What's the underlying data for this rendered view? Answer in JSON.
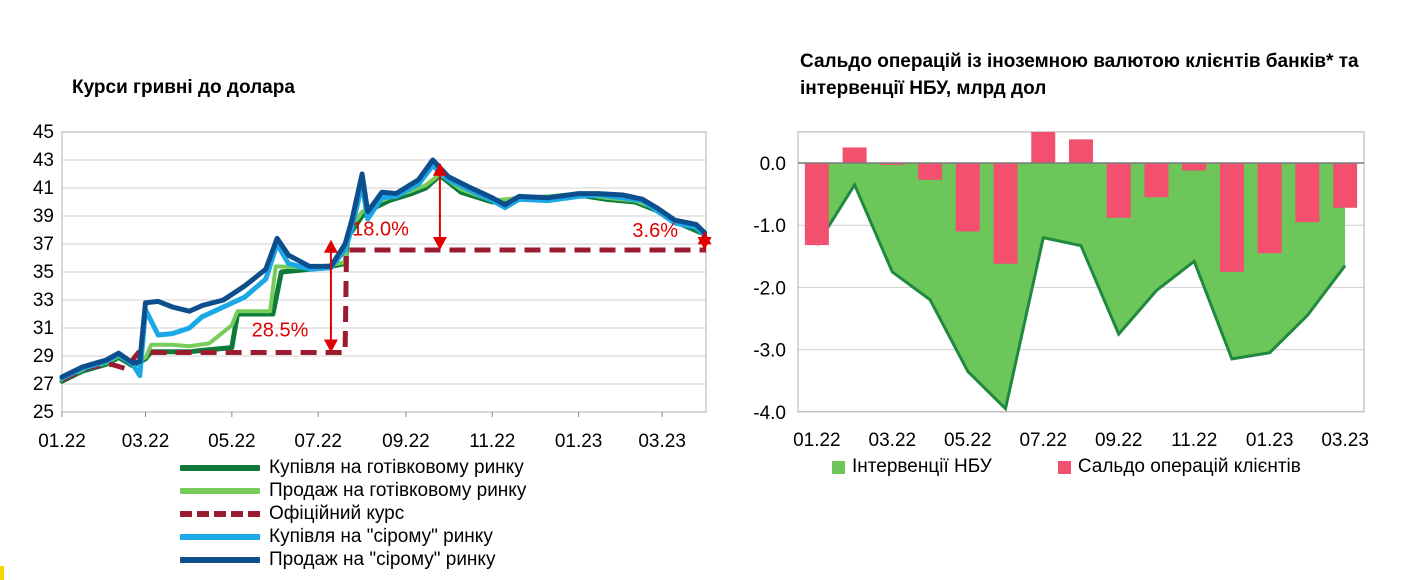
{
  "colors": {
    "dark_green": "#0e7a3a",
    "light_green": "#77cc5a",
    "official": "#9b1b30",
    "light_blue": "#1ba8e6",
    "dark_blue": "#0c4f8c",
    "arrow": "#e00000",
    "area_green": "#6cc65a",
    "area_line": "#1f8a3f",
    "bar_pink": "#f2506e"
  },
  "chart_data": [
    {
      "type": "line",
      "title": "Курси гривні до долара",
      "xlim": [
        "2022-01-01",
        "2023-04-01"
      ],
      "ylim": [
        25,
        45
      ],
      "y_ticks": [
        25,
        27,
        29,
        31,
        33,
        35,
        37,
        39,
        41,
        43,
        45
      ],
      "x_ticks": [
        {
          "date": "2022-01-01",
          "label": "01.22"
        },
        {
          "date": "2022-03-01",
          "label": "03.22"
        },
        {
          "date": "2022-05-01",
          "label": "05.22"
        },
        {
          "date": "2022-07-01",
          "label": "07.22"
        },
        {
          "date": "2022-09-01",
          "label": "09.22"
        },
        {
          "date": "2022-11-01",
          "label": "11.22"
        },
        {
          "date": "2023-01-01",
          "label": "01.23"
        },
        {
          "date": "2023-03-01",
          "label": "03.23"
        }
      ],
      "grid": "horizontal",
      "legend_position": "bottom",
      "series": [
        {
          "name": "Купівля на готівковому ринку",
          "points": [
            [
              "2022-01-01",
              27.2
            ],
            [
              "2022-01-15",
              27.9
            ],
            [
              "2022-02-01",
              28.4
            ],
            [
              "2022-02-10",
              28.9
            ],
            [
              "2022-02-20",
              28.3
            ],
            [
              "2022-03-01",
              28.8
            ],
            [
              "2022-03-05",
              29.3
            ],
            [
              "2022-04-01",
              29.3
            ],
            [
              "2022-04-10",
              29.4
            ],
            [
              "2022-05-01",
              29.6
            ],
            [
              "2022-05-05",
              32.0
            ],
            [
              "2022-05-30",
              32.0
            ],
            [
              "2022-06-05",
              35.0
            ],
            [
              "2022-06-25",
              35.2
            ],
            [
              "2022-07-10",
              35.4
            ],
            [
              "2022-07-20",
              35.6
            ],
            [
              "2022-07-22",
              37.5
            ],
            [
              "2022-08-01",
              39.0
            ],
            [
              "2022-08-10",
              39.6
            ],
            [
              "2022-08-20",
              40.1
            ],
            [
              "2022-09-05",
              40.6
            ],
            [
              "2022-09-15",
              41.0
            ],
            [
              "2022-09-25",
              41.9
            ],
            [
              "2022-10-10",
              40.7
            ],
            [
              "2022-11-01",
              40.0
            ],
            [
              "2022-11-20",
              40.2
            ],
            [
              "2022-12-10",
              40.3
            ],
            [
              "2023-01-01",
              40.5
            ],
            [
              "2023-01-20",
              40.2
            ],
            [
              "2023-02-10",
              40.0
            ],
            [
              "2023-02-25",
              39.4
            ],
            [
              "2023-03-10",
              38.6
            ],
            [
              "2023-03-31",
              37.7
            ]
          ]
        },
        {
          "name": "Продаж на готівковому ринку",
          "points": [
            [
              "2022-01-01",
              27.3
            ],
            [
              "2022-01-15",
              28.0
            ],
            [
              "2022-02-01",
              28.5
            ],
            [
              "2022-02-10",
              29.0
            ],
            [
              "2022-02-20",
              28.4
            ],
            [
              "2022-03-01",
              28.9
            ],
            [
              "2022-03-05",
              29.8
            ],
            [
              "2022-03-20",
              29.8
            ],
            [
              "2022-04-01",
              29.7
            ],
            [
              "2022-04-15",
              29.9
            ],
            [
              "2022-05-01",
              31.2
            ],
            [
              "2022-05-05",
              32.2
            ],
            [
              "2022-05-28",
              32.2
            ],
            [
              "2022-06-01",
              35.4
            ],
            [
              "2022-06-25",
              35.3
            ],
            [
              "2022-07-10",
              35.5
            ],
            [
              "2022-07-20",
              35.7
            ],
            [
              "2022-07-22",
              37.8
            ],
            [
              "2022-08-01",
              39.3
            ],
            [
              "2022-08-10",
              39.9
            ],
            [
              "2022-08-20",
              40.3
            ],
            [
              "2022-09-05",
              40.8
            ],
            [
              "2022-09-15",
              41.2
            ],
            [
              "2022-09-25",
              42.0
            ],
            [
              "2022-10-10",
              40.9
            ],
            [
              "2022-11-01",
              40.1
            ],
            [
              "2022-11-20",
              40.3
            ],
            [
              "2022-12-10",
              40.4
            ],
            [
              "2023-01-01",
              40.6
            ],
            [
              "2023-01-20",
              40.3
            ],
            [
              "2023-02-10",
              40.1
            ],
            [
              "2023-02-25",
              39.5
            ],
            [
              "2023-03-10",
              38.7
            ],
            [
              "2023-03-31",
              37.9
            ]
          ]
        },
        {
          "name": "Офіційний курс",
          "dashed": true,
          "points": [
            [
              "2022-01-01",
              27.3
            ],
            [
              "2022-01-20",
              28.2
            ],
            [
              "2022-02-05",
              28.4
            ],
            [
              "2022-02-15",
              28.1
            ],
            [
              "2022-02-24",
              29.25
            ],
            [
              "2022-07-20",
              29.25
            ],
            [
              "2022-07-21",
              36.57
            ],
            [
              "2023-04-01",
              36.57
            ]
          ]
        },
        {
          "name": "Купівля на \"сірому\" ринку",
          "points": [
            [
              "2022-01-01",
              27.4
            ],
            [
              "2022-01-15",
              28.1
            ],
            [
              "2022-02-01",
              28.6
            ],
            [
              "2022-02-10",
              29.1
            ],
            [
              "2022-02-20",
              28.4
            ],
            [
              "2022-02-25",
              27.6
            ],
            [
              "2022-03-01",
              32.3
            ],
            [
              "2022-03-10",
              30.5
            ],
            [
              "2022-03-20",
              30.6
            ],
            [
              "2022-04-01",
              31.0
            ],
            [
              "2022-04-10",
              31.8
            ],
            [
              "2022-04-25",
              32.5
            ],
            [
              "2022-05-10",
              33.2
            ],
            [
              "2022-05-25",
              34.5
            ],
            [
              "2022-06-02",
              37.0
            ],
            [
              "2022-06-10",
              35.6
            ],
            [
              "2022-06-25",
              35.2
            ],
            [
              "2022-07-10",
              35.3
            ],
            [
              "2022-07-20",
              36.6
            ],
            [
              "2022-07-25",
              38.2
            ],
            [
              "2022-08-01",
              41.3
            ],
            [
              "2022-08-05",
              38.8
            ],
            [
              "2022-08-15",
              40.3
            ],
            [
              "2022-08-25",
              40.4
            ],
            [
              "2022-09-10",
              41.3
            ],
            [
              "2022-09-20",
              42.6
            ],
            [
              "2022-10-01",
              41.6
            ],
            [
              "2022-10-15",
              40.9
            ],
            [
              "2022-11-01",
              40.1
            ],
            [
              "2022-11-10",
              39.6
            ],
            [
              "2022-11-20",
              40.2
            ],
            [
              "2022-12-10",
              40.1
            ],
            [
              "2023-01-01",
              40.4
            ],
            [
              "2023-01-15",
              40.5
            ],
            [
              "2023-02-01",
              40.3
            ],
            [
              "2023-02-15",
              40.1
            ],
            [
              "2023-02-25",
              39.4
            ],
            [
              "2023-03-10",
              38.5
            ],
            [
              "2023-03-25",
              38.2
            ],
            [
              "2023-03-31",
              37.6
            ]
          ]
        },
        {
          "name": "Продаж на \"сірому\" ринку",
          "points": [
            [
              "2022-01-01",
              27.5
            ],
            [
              "2022-01-15",
              28.2
            ],
            [
              "2022-02-01",
              28.7
            ],
            [
              "2022-02-10",
              29.2
            ],
            [
              "2022-02-20",
              28.5
            ],
            [
              "2022-02-25",
              28.6
            ],
            [
              "2022-03-01",
              32.8
            ],
            [
              "2022-03-10",
              32.9
            ],
            [
              "2022-03-20",
              32.5
            ],
            [
              "2022-04-01",
              32.2
            ],
            [
              "2022-04-10",
              32.6
            ],
            [
              "2022-04-25",
              33.0
            ],
            [
              "2022-05-10",
              34.0
            ],
            [
              "2022-05-25",
              35.2
            ],
            [
              "2022-06-02",
              37.4
            ],
            [
              "2022-06-10",
              36.2
            ],
            [
              "2022-06-25",
              35.4
            ],
            [
              "2022-07-10",
              35.4
            ],
            [
              "2022-07-20",
              37.0
            ],
            [
              "2022-07-25",
              38.8
            ],
            [
              "2022-08-01",
              42.0
            ],
            [
              "2022-08-05",
              39.3
            ],
            [
              "2022-08-15",
              40.7
            ],
            [
              "2022-08-25",
              40.6
            ],
            [
              "2022-09-10",
              41.6
            ],
            [
              "2022-09-20",
              43.0
            ],
            [
              "2022-10-01",
              41.8
            ],
            [
              "2022-10-15",
              41.1
            ],
            [
              "2022-11-01",
              40.3
            ],
            [
              "2022-11-10",
              39.8
            ],
            [
              "2022-11-20",
              40.4
            ],
            [
              "2022-12-10",
              40.3
            ],
            [
              "2023-01-01",
              40.6
            ],
            [
              "2023-01-15",
              40.6
            ],
            [
              "2023-02-01",
              40.5
            ],
            [
              "2023-02-15",
              40.2
            ],
            [
              "2023-02-25",
              39.6
            ],
            [
              "2023-03-10",
              38.7
            ],
            [
              "2023-03-25",
              38.4
            ],
            [
              "2023-03-31",
              37.8
            ]
          ]
        }
      ],
      "annotations": [
        {
          "text": "28.5%",
          "x": "2022-05-15",
          "y": 30.4,
          "arrow_x": "2022-07-10",
          "arrow_y": [
            29.25,
            37.3
          ]
        },
        {
          "text": "18.0%",
          "x": "2022-07-25",
          "y": 37.6,
          "arrow_x": "2022-09-25",
          "arrow_y": [
            36.57,
            42.8
          ]
        },
        {
          "text": "3.6%",
          "x": "2023-02-08",
          "y": 37.5,
          "arrow_x": "2023-03-31",
          "arrow_y": [
            36.57,
            37.9
          ]
        }
      ]
    },
    {
      "type": "bar",
      "title": "Сальдо операцій із іноземною валютою клієнтів банків* та інтервенції НБУ, млрд дол",
      "ylim": [
        -4.0,
        0.5
      ],
      "y_ticks": [
        0.0,
        -1.0,
        -2.0,
        -3.0,
        -4.0
      ],
      "y_tick_labels": [
        "0.0",
        "-1.0",
        "-2.0",
        "-3.0",
        "-4.0"
      ],
      "categories": [
        "01.22",
        "02.22",
        "03.22",
        "04.22",
        "05.22",
        "06.22",
        "07.22",
        "08.22",
        "09.22",
        "10.22",
        "11.22",
        "12.22",
        "01.23",
        "02.23",
        "03.23"
      ],
      "x_tick_labels": [
        "01.22",
        "03.22",
        "05.22",
        "07.22",
        "09.22",
        "11.22",
        "01.23",
        "03.23"
      ],
      "grid": "horizontal",
      "legend_position": "bottom",
      "series": [
        {
          "name": "Інтервенції НБУ",
          "type": "area",
          "values": [
            -1.32,
            -0.35,
            -1.75,
            -2.2,
            -3.35,
            -3.95,
            -1.2,
            -1.33,
            -2.75,
            -2.05,
            -1.58,
            -3.15,
            -3.05,
            -2.45,
            -1.65
          ]
        },
        {
          "name": "Сальдо операцій клієнтів",
          "type": "bar",
          "values": [
            -1.32,
            0.25,
            -0.03,
            -0.27,
            -1.1,
            -1.62,
            0.5,
            0.38,
            -0.88,
            -0.55,
            -0.12,
            -1.75,
            -1.45,
            -0.95,
            -0.72
          ]
        }
      ]
    }
  ]
}
